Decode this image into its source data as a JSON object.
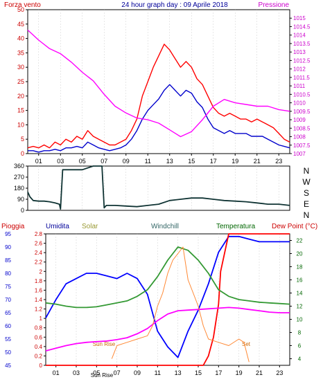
{
  "chart_data": [
    {
      "type": "line",
      "title": "24 hour graph day : 09 Aprile 2018",
      "left_label": "Forza vento",
      "right_label": "Pressione",
      "hours": [
        "01",
        "03",
        "05",
        "07",
        "09",
        "11",
        "13",
        "15",
        "17",
        "19",
        "21",
        "23"
      ],
      "y_left": {
        "min": 0,
        "max": 50,
        "ticks": [
          0,
          5,
          10,
          15,
          20,
          25,
          30,
          35,
          40,
          45,
          50
        ]
      },
      "y_right": {
        "min": 1007,
        "max": 1015.5,
        "ticks": [
          "1007",
          "1007.5",
          "1008",
          "1008.5",
          "1009",
          "1009.5",
          "1010",
          "1010.5",
          "1011",
          "1011.5",
          "1012",
          "1012.5",
          "1013",
          "1013.5",
          "1014",
          "1014.5",
          "1015"
        ]
      },
      "series": [
        {
          "color": "#ff0000",
          "axis": "left",
          "x": [
            0,
            0.5,
            1,
            1.5,
            2,
            2.5,
            3,
            3.5,
            4,
            4.5,
            5,
            5.5,
            6,
            6.5,
            7,
            7.5,
            8,
            8.5,
            9,
            9.5,
            10,
            10.5,
            11,
            11.5,
            12,
            12.5,
            13,
            13.5,
            14,
            14.5,
            15,
            15.5,
            16,
            16.5,
            17,
            17.5,
            18,
            18.5,
            19,
            19.5,
            20,
            20.5,
            21,
            21.5,
            22,
            22.5,
            23,
            23.5,
            24
          ],
          "y": [
            2,
            2.5,
            2,
            3,
            2,
            4,
            3,
            5,
            4,
            6,
            5,
            8,
            6,
            5,
            4,
            3,
            3,
            4,
            5,
            8,
            12,
            20,
            25,
            30,
            34,
            38,
            36,
            33,
            30,
            32,
            30,
            26,
            24,
            20,
            16,
            14,
            13,
            14,
            13,
            12,
            12,
            11,
            12,
            11,
            10,
            9,
            7,
            5,
            4
          ]
        },
        {
          "color": "#0000cc",
          "axis": "left",
          "x": [
            0,
            0.5,
            1,
            1.5,
            2,
            2.5,
            3,
            3.5,
            4,
            4.5,
            5,
            5.5,
            6,
            6.5,
            7,
            7.5,
            8,
            8.5,
            9,
            9.5,
            10,
            10.5,
            11,
            11.5,
            12,
            12.5,
            13,
            13.5,
            14,
            14.5,
            15,
            15.5,
            16,
            16.5,
            17,
            17.5,
            18,
            18.5,
            19,
            19.5,
            20,
            20.5,
            21,
            21.5,
            22,
            22.5,
            23,
            23.5,
            24
          ],
          "y": [
            1,
            1,
            0.5,
            1,
            1,
            1.5,
            1,
            2,
            2,
            2.5,
            2,
            4,
            3,
            2,
            1.5,
            1,
            1.5,
            2,
            3,
            5,
            8,
            12,
            15,
            17,
            19,
            22,
            24,
            22,
            20,
            22,
            21,
            18,
            16,
            12,
            9,
            8,
            7,
            8,
            7,
            7,
            7,
            6,
            6,
            6,
            5,
            4,
            3,
            2.5,
            2
          ]
        },
        {
          "color": "#ff00ff",
          "axis": "right",
          "x": [
            0,
            1,
            2,
            3,
            4,
            5,
            6,
            7,
            8,
            9,
            10,
            11,
            12,
            13,
            14,
            15,
            16,
            17,
            18,
            19,
            20,
            21,
            22,
            23,
            24
          ],
          "y": [
            1014.3,
            1013.7,
            1013.2,
            1012.9,
            1012.4,
            1011.8,
            1011.3,
            1010.5,
            1009.8,
            1009.4,
            1009.1,
            1009.0,
            1008.8,
            1008.4,
            1008.0,
            1008.3,
            1009.0,
            1009.8,
            1010.2,
            1010.0,
            1009.9,
            1009.8,
            1009.8,
            1009.6,
            1009.5
          ]
        }
      ]
    },
    {
      "type": "line",
      "y_left": {
        "min": 0,
        "max": 360,
        "ticks": [
          "0",
          "90",
          "180",
          "270",
          "360"
        ]
      },
      "right_letters": [
        "N",
        "W",
        "S",
        "E",
        "N"
      ],
      "hours": [
        "01",
        "03",
        "05",
        "07",
        "09",
        "11",
        "13",
        "15",
        "17",
        "19",
        "21",
        "23"
      ],
      "series": [
        {
          "color": "#0f3333",
          "x": [
            0,
            0.2,
            0.5,
            1,
            1.5,
            2,
            2.5,
            2.9,
            3,
            3.2,
            4,
            5,
            6,
            6.8,
            7,
            7.2,
            8,
            9,
            10,
            11,
            12,
            13,
            14,
            15,
            16,
            17,
            18,
            19,
            20,
            21,
            22,
            23,
            24
          ],
          "y": [
            150,
            110,
            80,
            75,
            75,
            70,
            60,
            50,
            10,
            330,
            330,
            330,
            360,
            360,
            20,
            40,
            40,
            35,
            30,
            40,
            50,
            80,
            90,
            100,
            100,
            90,
            80,
            75,
            70,
            60,
            50,
            50,
            40
          ]
        }
      ]
    },
    {
      "type": "line",
      "top_labels": [
        "Pioggia",
        "Umidita",
        "Solar",
        "Windchill",
        "Temperatura",
        "Dew Point (°C)"
      ],
      "annotations": [
        "Sun Rise",
        "Sun Rise",
        "Set"
      ],
      "hours": [
        "01",
        "03",
        "05",
        "07",
        "09",
        "11",
        "13",
        "15",
        "17",
        "19",
        "21",
        "23"
      ],
      "y_left_outer": {
        "min": 45,
        "max": 95,
        "ticks": [
          45,
          50,
          55,
          60,
          65,
          70,
          75,
          80,
          85,
          90,
          95
        ]
      },
      "y_left_inner": {
        "min": 0,
        "max": 2.8,
        "ticks": [
          "0",
          "0.2",
          "0.4",
          "0.6",
          "0.8",
          "1",
          "1.2",
          "1.4",
          "1.6",
          "1.8",
          "2",
          "2.2",
          "2.4",
          "2.6",
          "2.8"
        ]
      },
      "y_right": {
        "min": 3,
        "max": 23,
        "ticks": [
          4,
          6,
          8,
          10,
          12,
          14,
          16,
          18,
          20,
          22
        ]
      },
      "series": [
        {
          "color": "#0000ff",
          "axis": "left_outer",
          "x": [
            0,
            1,
            2,
            3,
            4,
            5,
            6,
            7,
            8,
            9,
            10,
            11,
            12,
            13,
            14,
            15,
            16,
            17,
            18,
            19,
            20,
            21,
            22,
            23,
            24
          ],
          "y": [
            63,
            70,
            76,
            78,
            80,
            80,
            79,
            78,
            80,
            78,
            72,
            58,
            52,
            48,
            58,
            66,
            76,
            88,
            94,
            94,
            93,
            92,
            92,
            92,
            92
          ]
        },
        {
          "color": "#ff0000",
          "axis": "left_inner",
          "x": [
            0,
            15.5,
            16,
            16.5,
            17,
            17.2,
            18,
            24
          ],
          "y": [
            0,
            0,
            0.2,
            0.6,
            1.3,
            2.0,
            2.8,
            2.8
          ]
        },
        {
          "color": "#339933",
          "axis": "right",
          "x": [
            0,
            1,
            2,
            3,
            4,
            5,
            6,
            7,
            8,
            9,
            10,
            11,
            12,
            13,
            14,
            15,
            16,
            17,
            18,
            19,
            20,
            21,
            22,
            23,
            24
          ],
          "y": [
            12.5,
            12.3,
            12.0,
            11.8,
            11.8,
            11.9,
            12.2,
            12.5,
            12.8,
            13.5,
            14.5,
            16.5,
            19.0,
            21.0,
            20.5,
            19.0,
            17.0,
            14.5,
            13.5,
            13.0,
            12.8,
            12.6,
            12.5,
            12.4,
            12.3
          ]
        },
        {
          "color": "#ff00ff",
          "axis": "right",
          "x": [
            0,
            1,
            2,
            3,
            4,
            5,
            6,
            7,
            8,
            9,
            10,
            11,
            12,
            13,
            14,
            15,
            16,
            17,
            18,
            19,
            20,
            21,
            22,
            23,
            24
          ],
          "y": [
            5.2,
            5.6,
            6.0,
            6.3,
            6.5,
            6.6,
            6.7,
            6.9,
            7.2,
            7.8,
            8.6,
            9.8,
            10.8,
            11.3,
            11.4,
            11.5,
            11.6,
            11.7,
            11.8,
            11.7,
            11.5,
            11.3,
            11.1,
            11.0,
            11.0
          ]
        },
        {
          "color": "#ff8833",
          "axis": "right",
          "x": [
            6.5,
            7,
            8,
            9,
            10,
            10.5,
            11,
            11.5,
            12,
            12.5,
            13,
            13.5,
            14,
            14.5,
            15,
            15.5,
            16,
            17,
            18,
            19,
            19.5,
            20
          ],
          "y": [
            4,
            6,
            6.5,
            7,
            7.5,
            9,
            12,
            14,
            17,
            19,
            20,
            21,
            16,
            14,
            12,
            9,
            7,
            6.5,
            6.0,
            7,
            6.5,
            3.5
          ]
        }
      ]
    }
  ]
}
